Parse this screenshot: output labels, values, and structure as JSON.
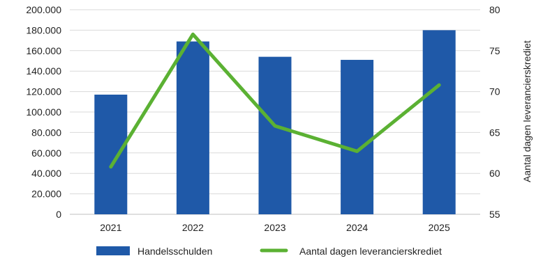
{
  "chart_data": {
    "type": "bar",
    "categories": [
      "2021",
      "2022",
      "2023",
      "2024",
      "2025"
    ],
    "series": [
      {
        "name": "Handelsschulden",
        "type": "bar",
        "axis": "left",
        "color": "#1f59a8",
        "values": [
          117000,
          169000,
          154000,
          151000,
          180000
        ]
      },
      {
        "name": "Aantal dagen leverancierskrediet",
        "type": "line",
        "axis": "right",
        "color": "#5bb133",
        "values": [
          60.8,
          77.0,
          65.8,
          62.7,
          70.8
        ]
      }
    ],
    "y_left": {
      "min": 0,
      "max": 200000,
      "ticks": [
        "0",
        "20.000",
        "40.000",
        "60.000",
        "80.000",
        "100.000",
        "120.000",
        "140.000",
        "160.000",
        "180.000",
        "200.000"
      ]
    },
    "y_right": {
      "min": 55,
      "max": 80,
      "ticks": [
        "55",
        "60",
        "65",
        "70",
        "75",
        "80"
      ],
      "label": "Aantal dagen leverancierskrediet"
    },
    "grid": true,
    "legend_position": "bottom"
  }
}
